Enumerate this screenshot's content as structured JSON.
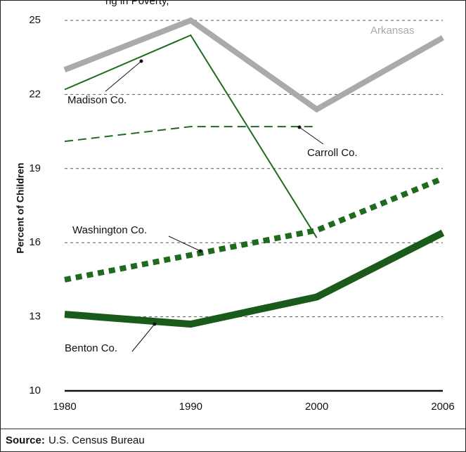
{
  "chart_data": {
    "type": "line",
    "title": "ng in Poverty,",
    "y_label": "Percent of Children",
    "source_label": "Source:",
    "source": "U.S. Census Bureau",
    "categories": [
      "1980",
      "1990",
      "2000",
      "2006"
    ],
    "ylim": [
      10,
      25
    ],
    "yticks": [
      10,
      13,
      16,
      19,
      22,
      25
    ],
    "grid": true,
    "series": [
      {
        "name": "Arkansas",
        "color": "#aaaaaa",
        "values": [
          23.0,
          25.0,
          21.4,
          24.3
        ]
      },
      {
        "name": "Madison Co.",
        "color": "#1e6b1e",
        "values": [
          22.2,
          24.4,
          16.2,
          null
        ]
      },
      {
        "name": "Carroll Co.",
        "color": "#1e6b1e",
        "values": [
          20.1,
          20.7,
          20.7,
          null
        ]
      },
      {
        "name": "Washington Co.",
        "color": "#1e6b1e",
        "values": [
          14.5,
          15.5,
          16.5,
          18.6
        ]
      },
      {
        "name": "Benton Co.",
        "color": "#1a5a1a",
        "values": [
          13.1,
          12.7,
          13.8,
          16.4
        ]
      }
    ]
  }
}
